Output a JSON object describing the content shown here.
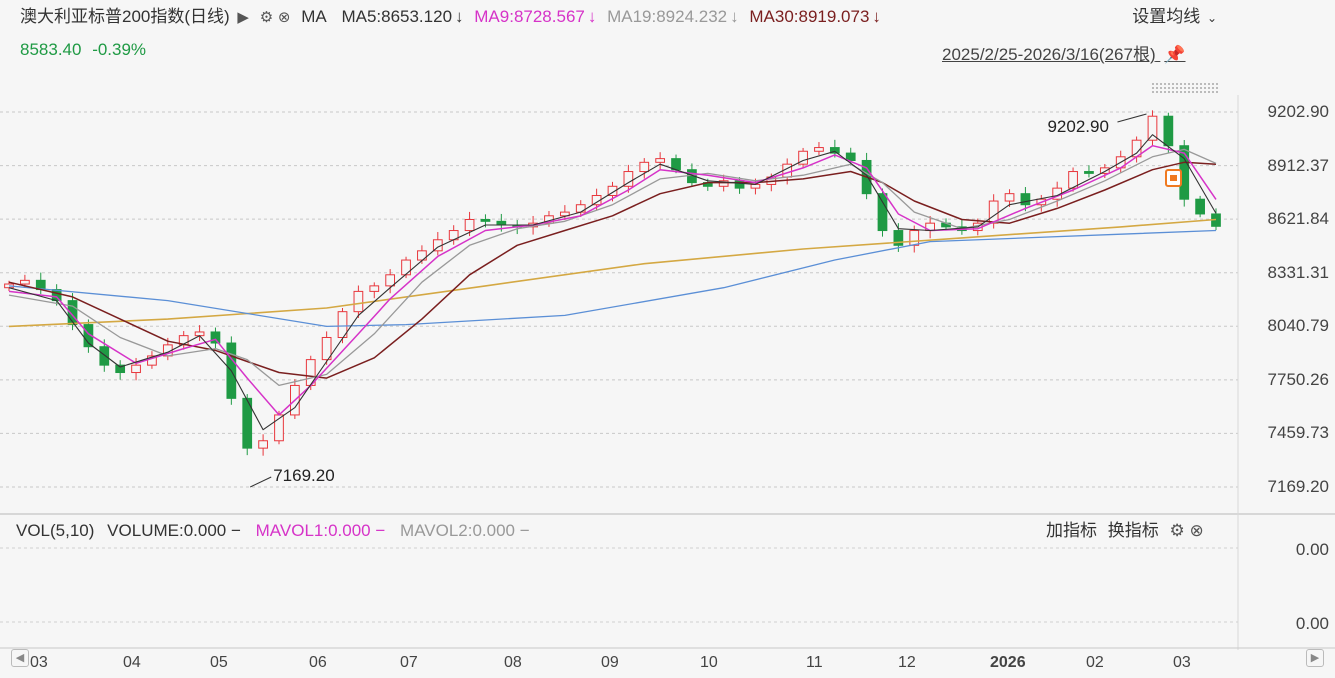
{
  "header": {
    "instrument": "澳大利亚标普200指数(日线)",
    "ma_label": "MA",
    "ma_items": [
      {
        "text": "MA5:8653.120",
        "color": "#333333",
        "arrow": "↓"
      },
      {
        "text": "MA9:8728.567",
        "color": "#d633c8",
        "arrow": "↓"
      },
      {
        "text": "MA19:8924.232",
        "color": "#999999",
        "arrow": "↓"
      },
      {
        "text": "MA30:8919.073",
        "color": "#7a1f1f",
        "arrow": "↓"
      }
    ],
    "price": "8583.40",
    "change": "-0.39%",
    "settings_label": "设置均线",
    "date_range": "2025/2/25-2026/3/16(267根)"
  },
  "volume_header": {
    "vol_label": "VOL(5,10)",
    "volume": "VOLUME:0.000",
    "mavol1": "MAVOL1:0.000",
    "mavol2": "MAVOL2:0.000",
    "dash": "−",
    "add_indicator": "加指标",
    "switch_indicator": "换指标"
  },
  "colors": {
    "up": "#e8363c",
    "down": "#1f9a44",
    "ma5": "#333333",
    "ma9": "#d633c8",
    "ma19": "#999999",
    "ma30": "#7a1f1f",
    "ma120": "#5b8fd6",
    "ma250": "#d4a843"
  },
  "chart_data": {
    "type": "candlestick",
    "y_ticks": [
      "9202.90",
      "8912.37",
      "8621.84",
      "8331.31",
      "8040.79",
      "7750.26",
      "7459.73",
      "7169.20"
    ],
    "ylim": [
      7169.2,
      9202.9
    ],
    "x_ticks": [
      "03",
      "04",
      "05",
      "06",
      "07",
      "08",
      "09",
      "10",
      "11",
      "12",
      "2026",
      "02",
      "03"
    ],
    "annotations": [
      {
        "text": "9202.90",
        "type": "high"
      },
      {
        "text": "7169.20",
        "type": "low"
      }
    ],
    "volume_ticks": [
      "0.00",
      "0.00"
    ],
    "close_path": [
      [
        0,
        8270
      ],
      [
        1,
        8290
      ],
      [
        2,
        8240
      ],
      [
        3,
        8180
      ],
      [
        4,
        8050
      ],
      [
        5,
        7930
      ],
      [
        6,
        7830
      ],
      [
        7,
        7790
      ],
      [
        8,
        7830
      ],
      [
        9,
        7880
      ],
      [
        10,
        7940
      ],
      [
        11,
        7990
      ],
      [
        12,
        8010
      ],
      [
        13,
        7950
      ],
      [
        14,
        7650
      ],
      [
        15,
        7380
      ],
      [
        16,
        7420
      ],
      [
        17,
        7560
      ],
      [
        18,
        7720
      ],
      [
        19,
        7860
      ],
      [
        20,
        7980
      ],
      [
        21,
        8120
      ],
      [
        22,
        8230
      ],
      [
        23,
        8260
      ],
      [
        24,
        8320
      ],
      [
        25,
        8400
      ],
      [
        26,
        8450
      ],
      [
        27,
        8510
      ],
      [
        28,
        8560
      ],
      [
        29,
        8620
      ],
      [
        30,
        8610
      ],
      [
        31,
        8590
      ],
      [
        32,
        8580
      ],
      [
        33,
        8600
      ],
      [
        34,
        8640
      ],
      [
        35,
        8660
      ],
      [
        36,
        8700
      ],
      [
        37,
        8750
      ],
      [
        38,
        8800
      ],
      [
        39,
        8880
      ],
      [
        40,
        8930
      ],
      [
        41,
        8950
      ],
      [
        42,
        8890
      ],
      [
        43,
        8820
      ],
      [
        44,
        8800
      ],
      [
        45,
        8830
      ],
      [
        46,
        8790
      ],
      [
        47,
        8810
      ],
      [
        48,
        8850
      ],
      [
        49,
        8920
      ],
      [
        50,
        8990
      ],
      [
        51,
        9010
      ],
      [
        52,
        8980
      ],
      [
        53,
        8940
      ],
      [
        54,
        8760
      ],
      [
        55,
        8560
      ],
      [
        56,
        8480
      ],
      [
        57,
        8560
      ],
      [
        58,
        8600
      ],
      [
        59,
        8580
      ],
      [
        60,
        8560
      ],
      [
        61,
        8600
      ],
      [
        62,
        8720
      ],
      [
        63,
        8760
      ],
      [
        64,
        8700
      ],
      [
        65,
        8730
      ],
      [
        66,
        8790
      ],
      [
        67,
        8880
      ],
      [
        68,
        8870
      ],
      [
        69,
        8900
      ],
      [
        70,
        8960
      ],
      [
        71,
        9050
      ],
      [
        72,
        9180
      ],
      [
        73,
        9020
      ],
      [
        74,
        8730
      ],
      [
        75,
        8650
      ],
      [
        76,
        8583
      ]
    ],
    "ma5": [
      [
        0,
        8250
      ],
      [
        3,
        8180
      ],
      [
        5,
        7950
      ],
      [
        7,
        7820
      ],
      [
        10,
        7900
      ],
      [
        12,
        7990
      ],
      [
        14,
        7800
      ],
      [
        16,
        7480
      ],
      [
        18,
        7600
      ],
      [
        20,
        7850
      ],
      [
        22,
        8100
      ],
      [
        24,
        8250
      ],
      [
        27,
        8470
      ],
      [
        30,
        8590
      ],
      [
        33,
        8590
      ],
      [
        36,
        8660
      ],
      [
        39,
        8820
      ],
      [
        41,
        8920
      ],
      [
        44,
        8830
      ],
      [
        47,
        8810
      ],
      [
        50,
        8940
      ],
      [
        52,
        8990
      ],
      [
        54,
        8860
      ],
      [
        56,
        8570
      ],
      [
        58,
        8560
      ],
      [
        61,
        8580
      ],
      [
        63,
        8700
      ],
      [
        66,
        8750
      ],
      [
        69,
        8880
      ],
      [
        71,
        8980
      ],
      [
        72,
        9080
      ],
      [
        74,
        8950
      ],
      [
        76,
        8653
      ]
    ],
    "ma9": [
      [
        0,
        8230
      ],
      [
        3,
        8200
      ],
      [
        5,
        8000
      ],
      [
        8,
        7840
      ],
      [
        11,
        7920
      ],
      [
        13,
        7970
      ],
      [
        15,
        7760
      ],
      [
        17,
        7560
      ],
      [
        19,
        7720
      ],
      [
        22,
        8000
      ],
      [
        24,
        8190
      ],
      [
        27,
        8420
      ],
      [
        30,
        8560
      ],
      [
        33,
        8590
      ],
      [
        36,
        8640
      ],
      [
        39,
        8780
      ],
      [
        41,
        8890
      ],
      [
        44,
        8860
      ],
      [
        47,
        8820
      ],
      [
        50,
        8900
      ],
      [
        52,
        8970
      ],
      [
        54,
        8900
      ],
      [
        56,
        8650
      ],
      [
        58,
        8560
      ],
      [
        61,
        8570
      ],
      [
        64,
        8680
      ],
      [
        67,
        8780
      ],
      [
        70,
        8900
      ],
      [
        72,
        9020
      ],
      [
        74,
        8980
      ],
      [
        76,
        8729
      ]
    ],
    "ma19": [
      [
        0,
        8210
      ],
      [
        4,
        8150
      ],
      [
        7,
        7980
      ],
      [
        10,
        7880
      ],
      [
        13,
        7920
      ],
      [
        15,
        7860
      ],
      [
        17,
        7720
      ],
      [
        20,
        7780
      ],
      [
        23,
        8000
      ],
      [
        26,
        8280
      ],
      [
        29,
        8480
      ],
      [
        32,
        8570
      ],
      [
        35,
        8610
      ],
      [
        38,
        8700
      ],
      [
        41,
        8840
      ],
      [
        44,
        8870
      ],
      [
        47,
        8830
      ],
      [
        50,
        8860
      ],
      [
        53,
        8920
      ],
      [
        55,
        8820
      ],
      [
        57,
        8660
      ],
      [
        60,
        8570
      ],
      [
        63,
        8620
      ],
      [
        66,
        8720
      ],
      [
        69,
        8830
      ],
      [
        72,
        8960
      ],
      [
        74,
        9000
      ],
      [
        76,
        8924
      ]
    ],
    "ma30": [
      [
        0,
        8280
      ],
      [
        4,
        8200
      ],
      [
        7,
        8080
      ],
      [
        10,
        7960
      ],
      [
        13,
        7910
      ],
      [
        15,
        7850
      ],
      [
        17,
        7790
      ],
      [
        20,
        7760
      ],
      [
        23,
        7870
      ],
      [
        26,
        8080
      ],
      [
        29,
        8320
      ],
      [
        32,
        8480
      ],
      [
        35,
        8560
      ],
      [
        38,
        8640
      ],
      [
        41,
        8760
      ],
      [
        44,
        8820
      ],
      [
        47,
        8820
      ],
      [
        50,
        8840
      ],
      [
        53,
        8880
      ],
      [
        55,
        8820
      ],
      [
        57,
        8720
      ],
      [
        60,
        8620
      ],
      [
        63,
        8600
      ],
      [
        66,
        8680
      ],
      [
        69,
        8780
      ],
      [
        72,
        8890
      ],
      [
        74,
        8930
      ],
      [
        76,
        8919
      ]
    ],
    "ma120": [
      [
        0,
        8260
      ],
      [
        10,
        8180
      ],
      [
        20,
        8040
      ],
      [
        25,
        8050
      ],
      [
        35,
        8100
      ],
      [
        45,
        8250
      ],
      [
        52,
        8400
      ],
      [
        58,
        8500
      ],
      [
        64,
        8520
      ],
      [
        70,
        8540
      ],
      [
        76,
        8560
      ]
    ],
    "ma250": [
      [
        0,
        8040
      ],
      [
        10,
        8080
      ],
      [
        20,
        8140
      ],
      [
        30,
        8260
      ],
      [
        40,
        8380
      ],
      [
        50,
        8460
      ],
      [
        60,
        8520
      ],
      [
        70,
        8580
      ],
      [
        76,
        8620
      ]
    ]
  }
}
